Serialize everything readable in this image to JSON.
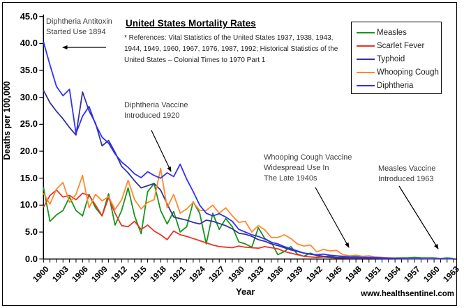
{
  "page": {
    "watermark": "www.healthsentinel.com"
  },
  "chart_data": {
    "type": "line",
    "title": "United States Mortality Rates",
    "references_lines": [
      "* References: Vital Statistics of the United States 1937, 1938, 1943,",
      "1944, 1949, 1960, 1967, 1976, 1987, 1992; Historical Statistics of the",
      "United States – Colonial Times to 1970 Part 1"
    ],
    "xlabel": "Year",
    "ylabel": "Deaths per 100,000",
    "ylim": [
      0,
      45
    ],
    "ytick_step": 5,
    "ytick_labels": [
      "0.0",
      "5.0",
      "10.0",
      "15.0",
      "20.0",
      "25.0",
      "30.0",
      "35.0",
      "40.0",
      "45.0"
    ],
    "x_start": 1900,
    "x_end": 1963,
    "xtick_label_years": [
      1900,
      1903,
      1906,
      1909,
      1912,
      1915,
      1918,
      1921,
      1924,
      1927,
      1930,
      1933,
      1936,
      1939,
      1942,
      1945,
      1948,
      1951,
      1954,
      1957,
      1960,
      1963
    ],
    "grid": false,
    "legend_position": "top-right",
    "series": [
      {
        "name": "Measles",
        "color": "#17941c",
        "values": [
          13.3,
          7.0,
          8.2,
          9.0,
          11.5,
          9.0,
          8.0,
          12.0,
          9.5,
          8.0,
          12.1,
          6.3,
          9.0,
          13.2,
          8.0,
          4.7,
          12.5,
          14.0,
          9.0,
          6.5,
          8.8,
          5.0,
          6.0,
          10.6,
          8.5,
          2.8,
          8.5,
          5.5,
          7.5,
          6.0,
          3.2,
          2.8,
          2.2,
          5.8,
          3.8,
          3.1,
          0.8,
          1.4,
          2.3,
          0.9,
          0.5,
          1.1,
          0.6,
          0.4,
          0.6,
          0.2,
          0.4,
          0.3,
          0.5,
          0.3,
          0.3,
          0.3,
          0.2,
          0.2,
          0.2,
          0.2,
          0.2,
          0.3,
          0.2,
          0.2,
          0.2,
          0.1,
          0.2,
          0.1
        ]
      },
      {
        "name": "Scarlet Fever",
        "color": "#ea3423",
        "values": [
          9.6,
          11.8,
          12.8,
          11.5,
          11.8,
          11.0,
          12.2,
          11.8,
          10.0,
          8.0,
          11.4,
          8.5,
          6.2,
          6.0,
          7.0,
          5.5,
          6.3,
          5.2,
          4.5,
          3.6,
          5.2,
          4.5,
          4.2,
          3.8,
          3.4,
          3.0,
          2.6,
          2.3,
          2.2,
          2.1,
          2.4,
          2.2,
          2.1,
          2.0,
          2.3,
          2.1,
          1.9,
          1.4,
          1.1,
          0.8,
          0.5,
          0.4,
          0.3,
          0.4,
          0.3,
          0.2,
          0.2,
          0.1,
          0.1,
          0.1,
          0.1,
          0.1,
          0.1,
          0.1,
          0.05,
          0.05,
          0.05,
          0.05,
          0.05,
          0.05,
          0.05,
          0.02,
          0.02,
          0.02
        ]
      },
      {
        "name": "Typhoid",
        "color": "#33339b",
        "values": [
          31.3,
          29.0,
          27.4,
          26.0,
          24.4,
          23.0,
          31.0,
          27.5,
          25.2,
          21.0,
          22.0,
          19.8,
          17.2,
          16.0,
          14.5,
          13.2,
          13.6,
          14.0,
          12.8,
          10.2,
          7.8,
          7.5,
          7.2,
          6.8,
          6.5,
          7.2,
          7.0,
          6.6,
          6.2,
          5.6,
          4.8,
          4.6,
          4.2,
          3.6,
          3.3,
          2.8,
          2.5,
          2.1,
          1.7,
          1.4,
          1.1,
          0.9,
          0.7,
          0.5,
          0.4,
          0.3,
          0.25,
          0.2,
          0.15,
          0.1,
          0.1,
          0.1,
          0.05,
          0.05,
          0.05,
          0.05,
          0.05,
          0.05,
          0.02,
          0.02,
          0.02,
          0.02,
          0.02,
          0.02
        ]
      },
      {
        "name": "Whooping Cough",
        "color": "#ff8a2b",
        "values": [
          12.2,
          10.2,
          13.0,
          14.2,
          10.5,
          12.0,
          15.5,
          9.5,
          12.0,
          10.8,
          11.6,
          9.2,
          11.0,
          14.6,
          11.0,
          9.3,
          10.5,
          11.0,
          16.8,
          9.5,
          12.0,
          8.5,
          9.3,
          10.5,
          9.0,
          9.0,
          10.0,
          8.5,
          9.5,
          8.0,
          6.8,
          7.0,
          5.0,
          6.2,
          5.4,
          4.0,
          4.0,
          4.5,
          3.8,
          2.8,
          2.4,
          2.6,
          1.3,
          1.8,
          1.5,
          1.6,
          0.8,
          0.6,
          0.7,
          0.5,
          0.6,
          0.4,
          0.3,
          0.2,
          0.15,
          0.1,
          0.1,
          0.1,
          0.1,
          0.1,
          0.05,
          0.05,
          0.05,
          0.05
        ]
      },
      {
        "name": "Diphtheria",
        "color": "#2f2fff",
        "values": [
          40.3,
          36.0,
          32.0,
          30.3,
          31.5,
          23.3,
          26.5,
          28.3,
          25.0,
          22.6,
          21.5,
          19.5,
          18.0,
          17.0,
          15.8,
          15.1,
          16.2,
          15.5,
          15.0,
          16.0,
          15.3,
          17.6,
          14.8,
          12.5,
          10.0,
          8.5,
          8.0,
          8.4,
          7.8,
          7.0,
          5.5,
          5.0,
          4.5,
          4.2,
          3.7,
          3.1,
          2.8,
          2.3,
          1.9,
          1.5,
          1.1,
          0.9,
          0.8,
          0.9,
          0.7,
          0.6,
          0.5,
          0.4,
          0.35,
          0.3,
          0.3,
          0.25,
          0.2,
          0.15,
          0.1,
          0.1,
          0.05,
          0.05,
          0.05,
          0.02,
          0.02,
          0.02,
          0.02,
          0.02
        ]
      }
    ],
    "annotations": [
      {
        "lines": [
          "Diphtheria Antitoxin",
          "Started Use 1894"
        ]
      },
      {
        "lines": [
          "Diphtheria Vaccine",
          "Introduced 1920"
        ]
      },
      {
        "lines": [
          "Whooping Cough Vaccine",
          "Widespread Use In",
          "The Late 1940s"
        ]
      },
      {
        "lines": [
          "Measles Vaccine",
          "Introduced 1963"
        ]
      }
    ]
  }
}
